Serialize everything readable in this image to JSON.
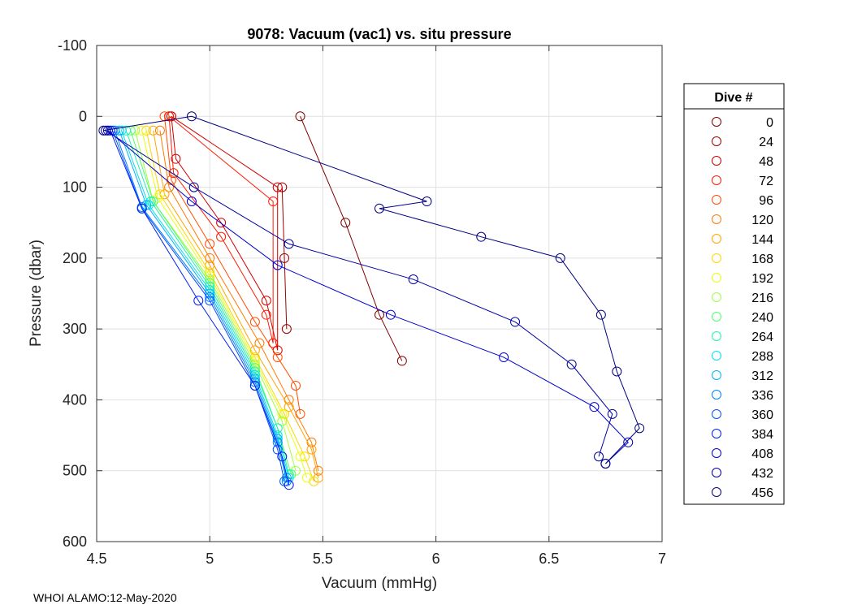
{
  "chart_data": {
    "type": "scatter",
    "title": "9078: Vacuum (vac1) vs. situ pressure",
    "xlabel": "Vacuum (mmHg)",
    "ylabel": "Pressure (dbar)",
    "xlim": [
      4.5,
      7
    ],
    "ylim": [
      -100,
      600
    ],
    "y_reversed": true,
    "grid": true,
    "x_ticks": [
      4.5,
      5,
      5.5,
      6,
      6.5,
      7
    ],
    "y_ticks": [
      -100,
      0,
      100,
      200,
      300,
      400,
      500,
      600
    ],
    "legend": {
      "title": "Dive #",
      "placement": "outside-right",
      "entries": [
        {
          "label": "0",
          "color": "#800000"
        },
        {
          "label": "24",
          "color": "#a00000"
        },
        {
          "label": "48",
          "color": "#d00000"
        },
        {
          "label": "72",
          "color": "#ff1a00"
        },
        {
          "label": "96",
          "color": "#ff4d00"
        },
        {
          "label": "120",
          "color": "#ff7a00"
        },
        {
          "label": "144",
          "color": "#ffa500"
        },
        {
          "label": "168",
          "color": "#ffd500"
        },
        {
          "label": "192",
          "color": "#e8ff10"
        },
        {
          "label": "216",
          "color": "#a0ff40"
        },
        {
          "label": "240",
          "color": "#50ff70"
        },
        {
          "label": "264",
          "color": "#20f0b0"
        },
        {
          "label": "288",
          "color": "#00e0f0"
        },
        {
          "label": "312",
          "color": "#00b0ff"
        },
        {
          "label": "336",
          "color": "#0080ff"
        },
        {
          "label": "360",
          "color": "#0050ff"
        },
        {
          "label": "384",
          "color": "#0020f0"
        },
        {
          "label": "408",
          "color": "#0000d0"
        },
        {
          "label": "432",
          "color": "#0000a0"
        },
        {
          "label": "456",
          "color": "#000080"
        }
      ]
    },
    "series": [
      {
        "name": "0",
        "color": "#800000",
        "x": [
          5.4,
          5.6,
          5.75,
          5.85
        ],
        "y": [
          0,
          150,
          280,
          345
        ]
      },
      {
        "name": "24",
        "color": "#a00000",
        "x": [
          5.32,
          5.33,
          5.34
        ],
        "y": [
          100,
          200,
          300
        ]
      },
      {
        "name": "48",
        "color": "#d00000",
        "x": [
          4.83,
          4.85,
          5.05,
          5.25,
          5.3,
          5.3,
          4.83
        ],
        "y": [
          0,
          60,
          150,
          260,
          330,
          100,
          0
        ]
      },
      {
        "name": "72",
        "color": "#ff1a00",
        "x": [
          4.82,
          4.84,
          5.05,
          5.25,
          5.28,
          5.28,
          4.82
        ],
        "y": [
          0,
          80,
          170,
          280,
          320,
          120,
          0
        ]
      },
      {
        "name": "96",
        "color": "#ff4d00",
        "x": [
          4.8,
          4.83,
          5.0,
          5.2,
          5.3,
          5.38,
          5.4
        ],
        "y": [
          0,
          90,
          180,
          290,
          340,
          380,
          420
        ]
      },
      {
        "name": "120",
        "color": "#ff7a00",
        "x": [
          4.78,
          4.82,
          5.0,
          5.22,
          5.35,
          5.45,
          5.48
        ],
        "y": [
          20,
          100,
          200,
          320,
          400,
          460,
          500
        ]
      },
      {
        "name": "144",
        "color": "#ffa500",
        "x": [
          4.75,
          4.8,
          5.0,
          5.2,
          5.35,
          5.45,
          5.48
        ],
        "y": [
          20,
          110,
          210,
          330,
          410,
          470,
          510
        ]
      },
      {
        "name": "168",
        "color": "#ffd500",
        "x": [
          4.72,
          4.78,
          5.0,
          5.2,
          5.33,
          5.42,
          5.46
        ],
        "y": [
          20,
          110,
          220,
          340,
          420,
          480,
          515
        ]
      },
      {
        "name": "192",
        "color": "#e8ff10",
        "x": [
          4.7,
          4.77,
          5.0,
          5.2,
          5.32,
          5.4,
          5.43
        ],
        "y": [
          20,
          115,
          225,
          345,
          420,
          480,
          510
        ]
      },
      {
        "name": "216",
        "color": "#a0ff40",
        "x": [
          4.67,
          4.75,
          5.0,
          5.2,
          5.32,
          5.38
        ],
        "y": [
          20,
          120,
          230,
          350,
          430,
          500
        ]
      },
      {
        "name": "240",
        "color": "#50ff70",
        "x": [
          4.65,
          4.75,
          5.0,
          5.2,
          5.3,
          5.36
        ],
        "y": [
          20,
          120,
          235,
          355,
          440,
          505
        ]
      },
      {
        "name": "264",
        "color": "#20f0b0",
        "x": [
          4.63,
          4.74,
          5.0,
          5.2,
          5.3,
          5.35
        ],
        "y": [
          20,
          120,
          240,
          360,
          440,
          505
        ]
      },
      {
        "name": "288",
        "color": "#00e0f0",
        "x": [
          4.61,
          4.73,
          5.0,
          5.2,
          5.3,
          5.35
        ],
        "y": [
          20,
          125,
          245,
          365,
          450,
          510
        ]
      },
      {
        "name": "312",
        "color": "#00b0ff",
        "x": [
          4.6,
          4.72,
          5.0,
          5.2,
          5.3,
          5.34
        ],
        "y": [
          20,
          125,
          250,
          370,
          455,
          510
        ]
      },
      {
        "name": "336",
        "color": "#0080ff",
        "x": [
          4.58,
          4.7,
          5.0,
          5.2,
          5.3,
          5.34
        ],
        "y": [
          20,
          128,
          255,
          375,
          460,
          515
        ]
      },
      {
        "name": "360",
        "color": "#0050ff",
        "x": [
          4.57,
          4.7,
          5.0,
          5.2,
          5.3,
          5.33
        ],
        "y": [
          20,
          130,
          260,
          380,
          470,
          515
        ]
      },
      {
        "name": "384",
        "color": "#0020f0",
        "x": [
          4.56,
          4.7,
          4.95,
          5.2,
          5.32,
          5.35
        ],
        "y": [
          20,
          130,
          260,
          380,
          480,
          520
        ]
      },
      {
        "name": "408",
        "color": "#0000d0",
        "x": [
          4.55,
          4.92,
          5.3,
          5.8,
          6.3,
          6.7,
          6.85,
          6.75
        ],
        "y": [
          20,
          120,
          210,
          280,
          340,
          410,
          460,
          490
        ]
      },
      {
        "name": "432",
        "color": "#0000a0",
        "x": [
          4.54,
          4.93,
          5.35,
          5.9,
          6.35,
          6.6,
          6.78,
          6.72
        ],
        "y": [
          20,
          100,
          180,
          230,
          290,
          350,
          420,
          480
        ]
      },
      {
        "name": "456",
        "color": "#000080",
        "x": [
          4.53,
          4.92,
          5.96,
          5.75,
          6.2,
          6.55,
          6.73,
          6.8,
          6.9,
          6.75
        ],
        "y": [
          20,
          0,
          120,
          130,
          170,
          200,
          280,
          360,
          440,
          490
        ]
      }
    ]
  },
  "footer": {
    "text": "WHOI ALAMO:12-May-2020"
  }
}
